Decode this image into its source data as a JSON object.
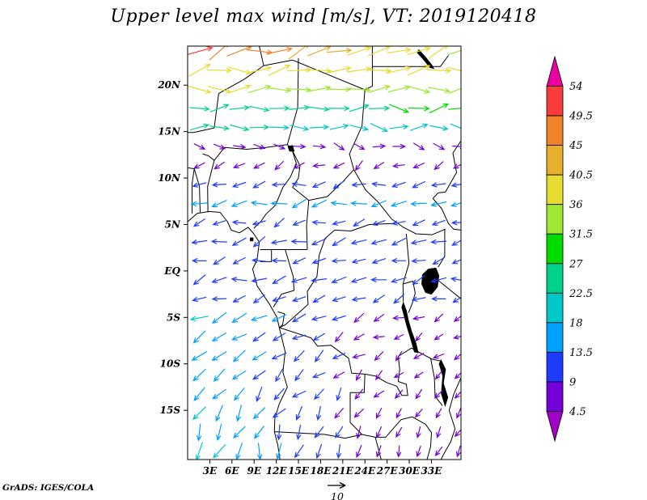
{
  "title": "Upper level max wind [m/s], VT: 2019120418",
  "credit": "GrADS: IGES/COLA",
  "reference_vector": {
    "label": "10",
    "speed": 10,
    "units": "m/s"
  },
  "axes": {
    "x_ticks": [
      "3E",
      "6E",
      "9E",
      "12E",
      "15E",
      "18E",
      "21E",
      "24E",
      "27E",
      "30E",
      "33E"
    ],
    "x_values": [
      3,
      6,
      9,
      12,
      15,
      18,
      21,
      24,
      27,
      30,
      33
    ],
    "y_ticks": [
      "20N",
      "15N",
      "10N",
      "5N",
      "EQ",
      "5S",
      "10S",
      "15S"
    ],
    "y_values": [
      20,
      15,
      10,
      5,
      0,
      -5,
      -10,
      -15
    ],
    "lon_range": [
      0,
      37
    ],
    "lat_range": [
      -20.3,
      24.2
    ]
  },
  "colorbar": {
    "orientation": "vertical",
    "labels": [
      "54",
      "49.5",
      "45",
      "40.5",
      "36",
      "31.5",
      "27",
      "22.5",
      "18",
      "13.5",
      "9",
      "4.5"
    ],
    "levels": [
      4.5,
      9,
      13.5,
      18,
      22.5,
      27,
      31.5,
      36,
      40.5,
      45,
      49.5,
      54
    ],
    "colors_low_to_high": [
      "#a000c8",
      "#7300d9",
      "#1e3cff",
      "#00a0ff",
      "#00c8c8",
      "#00d28c",
      "#00dc00",
      "#a0e632",
      "#e6dc32",
      "#e6af2d",
      "#f08228",
      "#fa3c3c",
      "#e800a0"
    ]
  },
  "chart_data": {
    "type": "vector-field",
    "variable": "Upper level max wind",
    "units": "m/s",
    "valid_time": "2019120418",
    "region": "Central Africa",
    "lon_range": [
      0,
      37
    ],
    "lat_range": [
      -20.3,
      24.2
    ],
    "grid": {
      "lon_start": 1.6,
      "lon_step": 2.7,
      "lon_count": 14,
      "lat_start": -19.4,
      "lat_step": 2.05,
      "lat_count": 22
    },
    "bands_note": "zonal-mean wind (u,v in m/s) read from the plot by latitude; arrows point downwind",
    "bands": [
      {
        "lat": -20,
        "u": -4,
        "v": -14
      },
      {
        "lat": -18,
        "u": -5,
        "v": -13
      },
      {
        "lat": -16,
        "u": -7,
        "v": -12
      },
      {
        "lat": -14,
        "u": -8,
        "v": -10
      },
      {
        "lat": -12,
        "u": -9,
        "v": -9
      },
      {
        "lat": -10,
        "u": -10,
        "v": -8
      },
      {
        "lat": -8,
        "u": -11,
        "v": -7
      },
      {
        "lat": -6,
        "u": -12,
        "v": -6
      },
      {
        "lat": -4,
        "u": -12,
        "v": -5
      },
      {
        "lat": -2,
        "u": -10,
        "v": -4
      },
      {
        "lat": 0,
        "u": -12,
        "v": -2
      },
      {
        "lat": 2,
        "u": -12,
        "v": -3
      },
      {
        "lat": 4,
        "u": -10,
        "v": -4
      },
      {
        "lat": 6,
        "u": -11,
        "v": -3
      },
      {
        "lat": 8,
        "u": -13,
        "v": -2
      },
      {
        "lat": 10,
        "u": -11,
        "v": -3
      },
      {
        "lat": 12,
        "u": -3,
        "v": -3
      },
      {
        "lat": 14,
        "u": 13,
        "v": -2
      },
      {
        "lat": 16,
        "u": 23,
        "v": -1
      },
      {
        "lat": 18,
        "u": 29,
        "v": 1
      },
      {
        "lat": 20,
        "u": 35,
        "v": 2
      },
      {
        "lat": 22,
        "u": 43,
        "v": 6
      },
      {
        "lat": 24,
        "u": 46,
        "v": 16
      }
    ]
  }
}
